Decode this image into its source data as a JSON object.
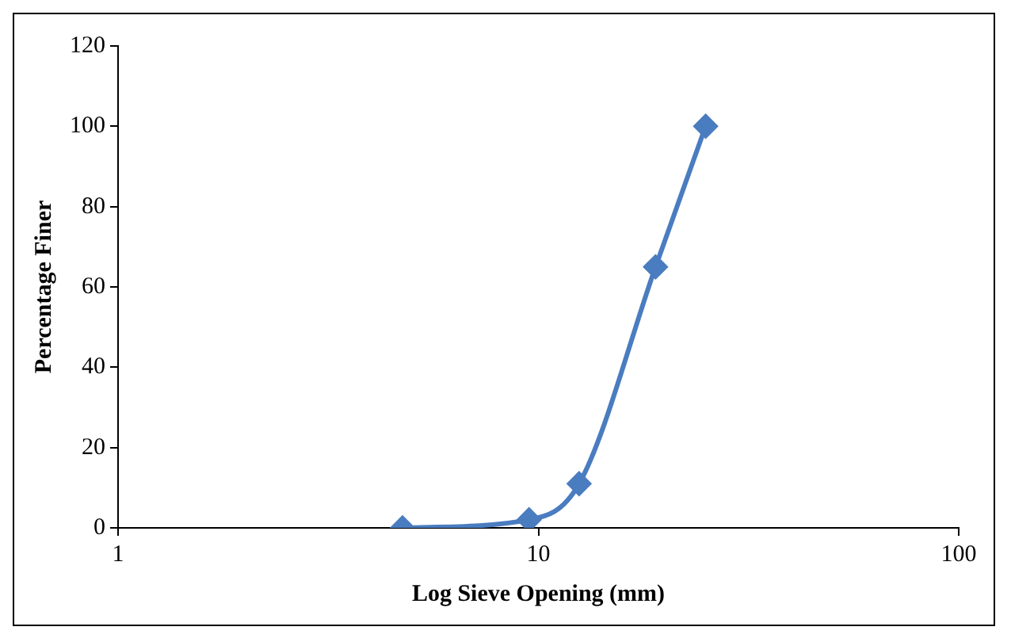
{
  "chart_data": {
    "type": "line",
    "xlabel": "Log Sieve Opening (mm)",
    "ylabel": "Percentage Finer",
    "log": "x",
    "x": [
      4.75,
      9.5,
      12.5,
      19,
      25
    ],
    "series": [
      {
        "color": "#4a7cc0",
        "values": [
          0,
          2,
          11,
          65,
          100
        ]
      }
    ],
    "xlim": [
      1,
      100
    ],
    "xticks": [
      1,
      10,
      100
    ],
    "ylim": [
      0,
      120
    ],
    "yticks": [
      0,
      20,
      40,
      60,
      80,
      100,
      120
    ],
    "grid": false,
    "legend": false,
    "marker": "diamond",
    "line_style": "solid"
  }
}
